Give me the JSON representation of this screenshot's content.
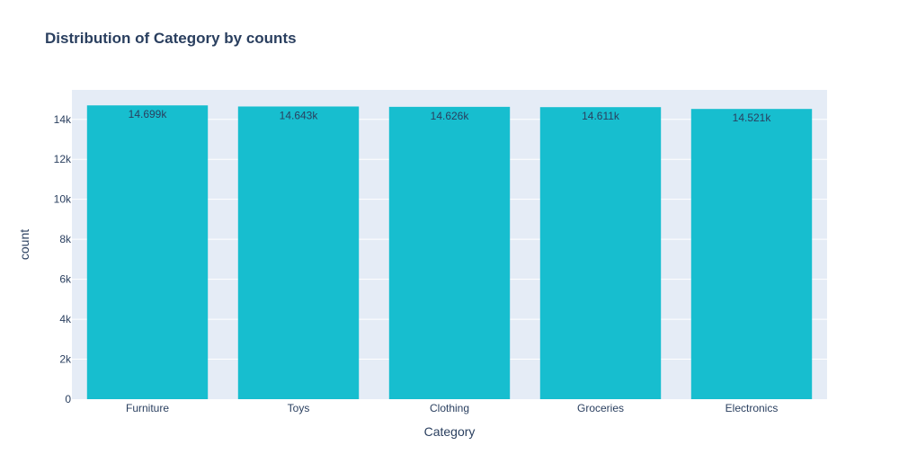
{
  "chart_data": {
    "type": "bar",
    "title": "Distribution of Category by counts",
    "xlabel": "Category",
    "ylabel": "count",
    "categories": [
      "Furniture",
      "Toys",
      "Clothing",
      "Groceries",
      "Electronics"
    ],
    "values": [
      14699,
      14643,
      14626,
      14611,
      14521
    ],
    "data_labels": [
      "14.699k",
      "14.643k",
      "14.626k",
      "14.611k",
      "14.521k"
    ],
    "ylim": [
      0,
      15473.7
    ],
    "yticks": [
      0,
      2000,
      4000,
      6000,
      8000,
      10000,
      12000,
      14000
    ],
    "ytick_labels": [
      "0",
      "2k",
      "4k",
      "6k",
      "8k",
      "10k",
      "12k",
      "14k"
    ],
    "grid": true,
    "colors": {
      "bar": "#17becf",
      "plot_bg": "#e5ecf6",
      "grid": "#ffffff",
      "text": "#2a3f5f"
    }
  }
}
